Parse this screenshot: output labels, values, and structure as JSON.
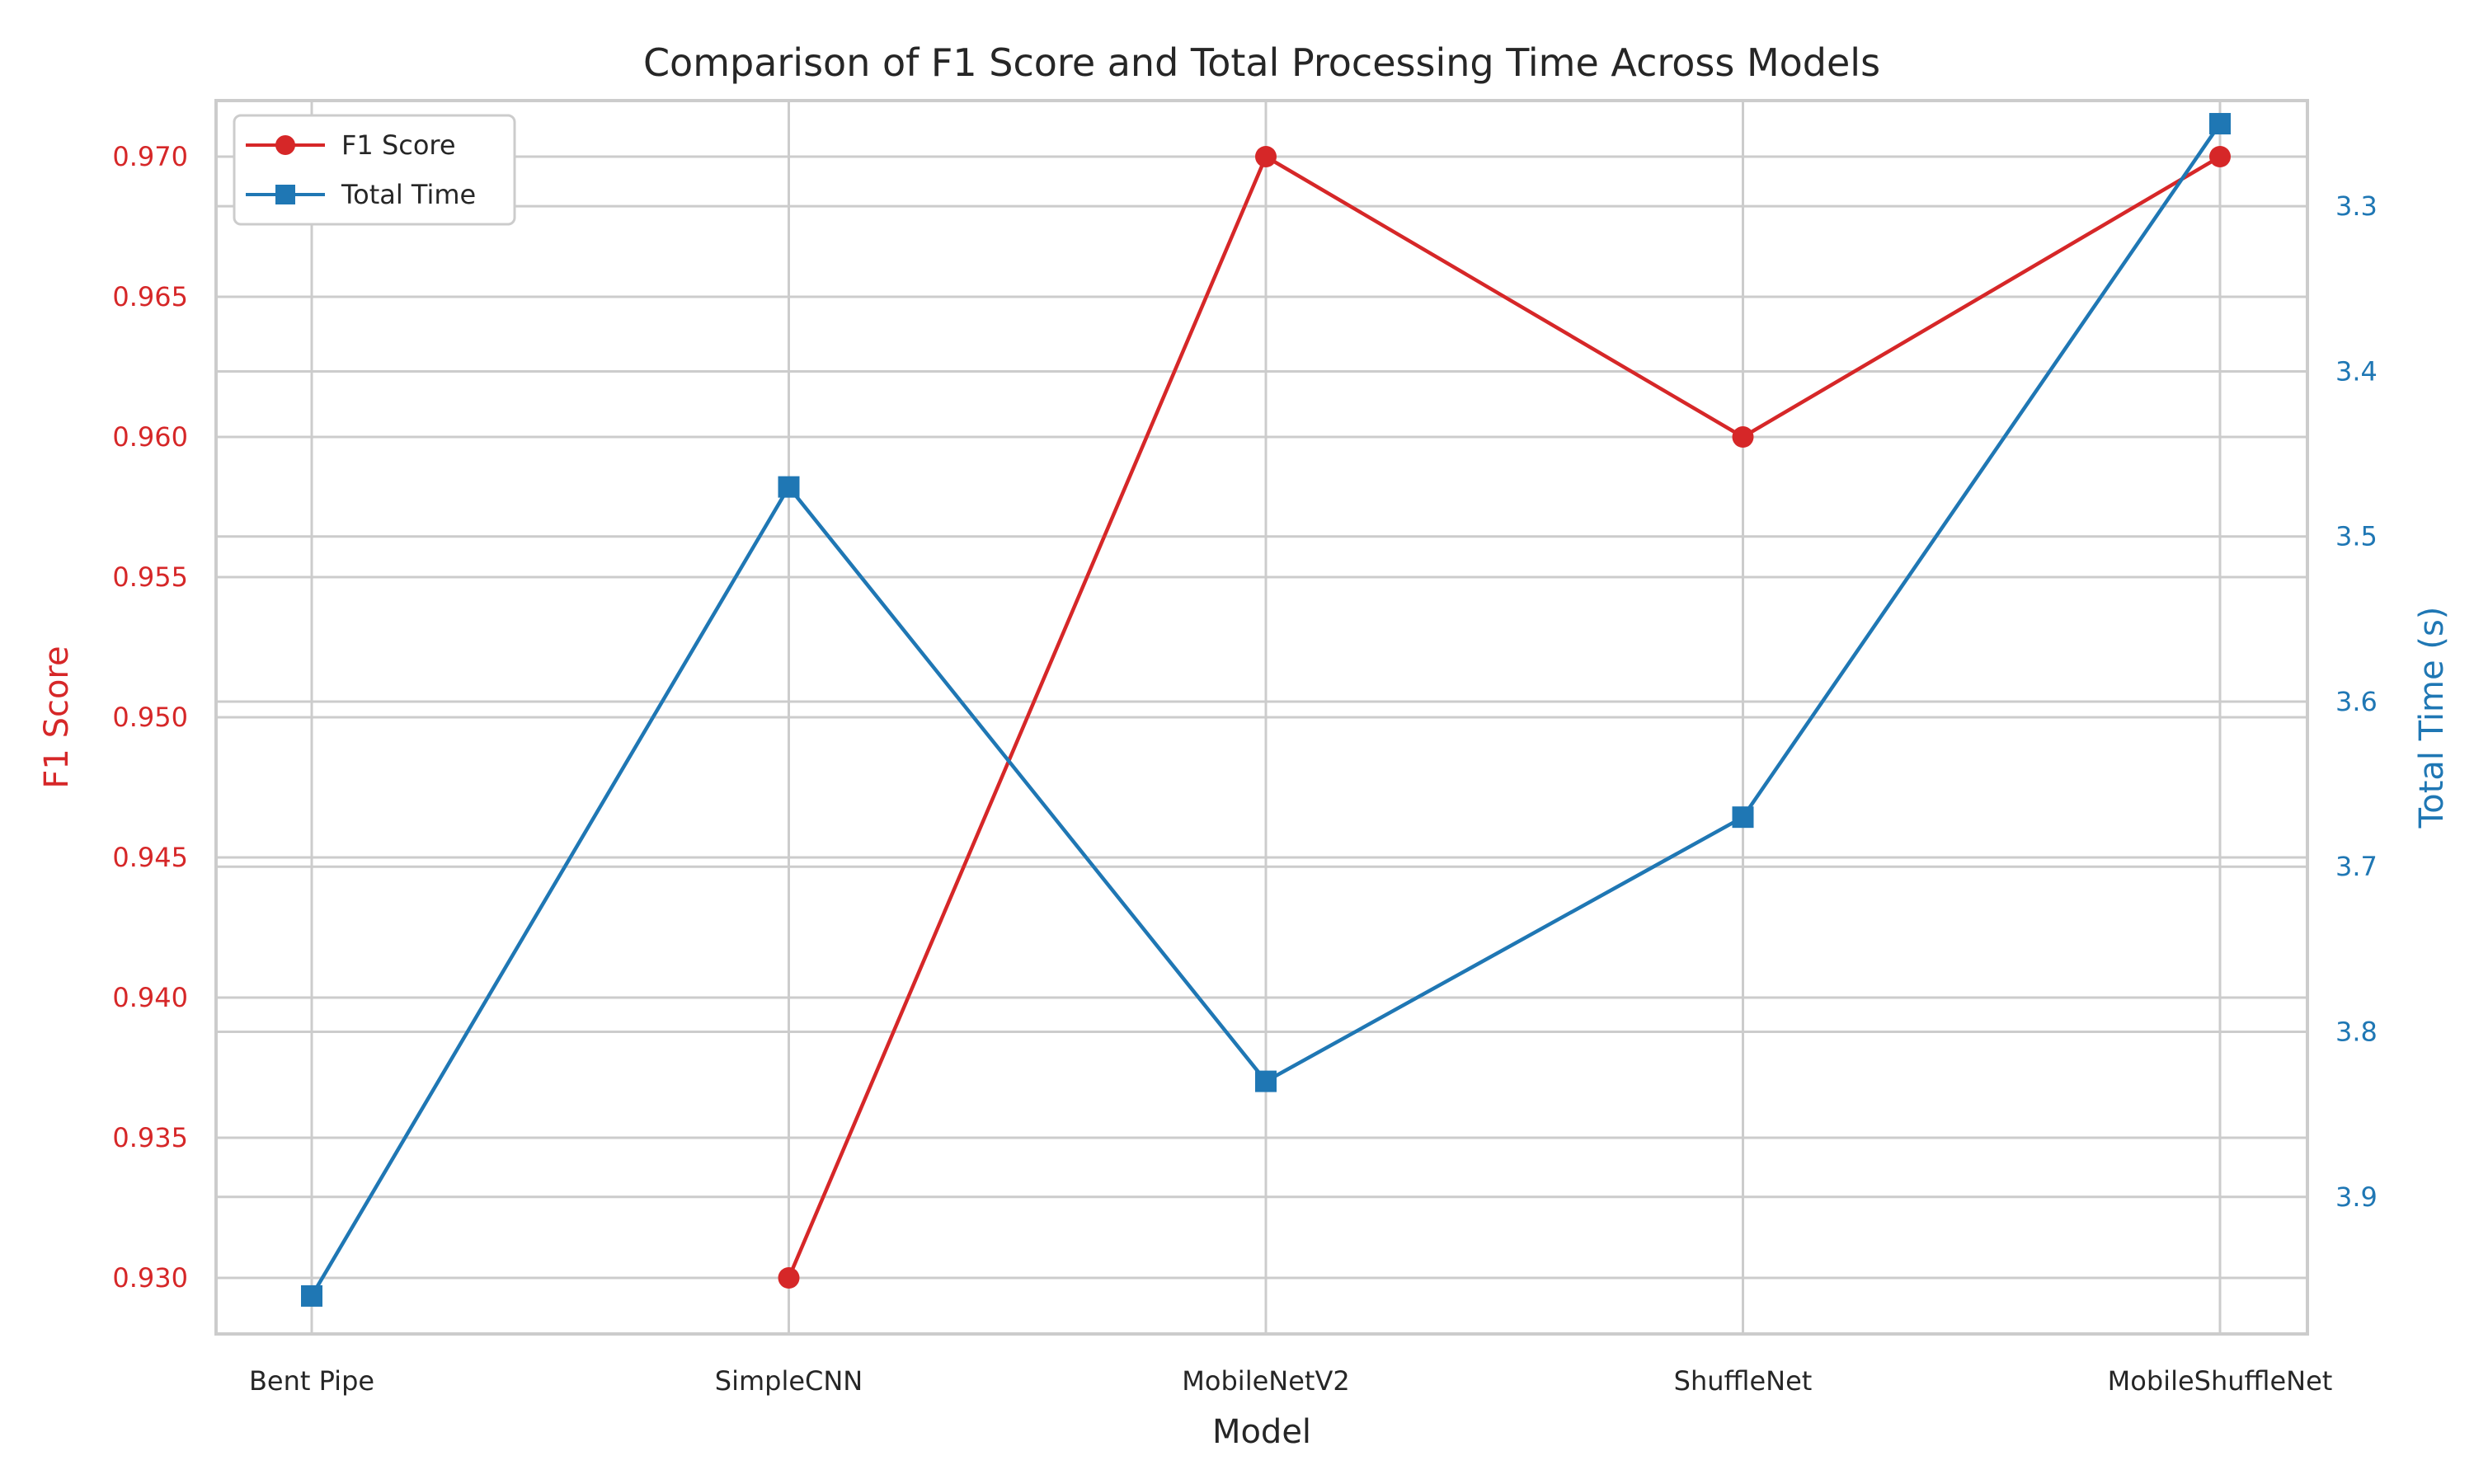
{
  "chart_data": {
    "type": "line",
    "title": "Comparison of F1 Score and Total Processing Time Across Models",
    "xlabel": "Model",
    "categories": [
      "Bent Pipe",
      "SimpleCNN",
      "MobileNetV2",
      "ShuffleNet",
      "MobileShuffleNet"
    ],
    "left_axis": {
      "label": "F1 Score",
      "color": "#d62728",
      "ylim": [
        0.928,
        0.972
      ],
      "ticks": [
        "0.930",
        "0.935",
        "0.940",
        "0.945",
        "0.950",
        "0.955",
        "0.960",
        "0.965",
        "0.970"
      ]
    },
    "right_axis": {
      "label": "Total Time (s)",
      "color": "#1f77b4",
      "inverted": true,
      "ylim": [
        3.983,
        3.236
      ],
      "ticks": [
        "3.3",
        "3.4",
        "3.5",
        "3.6",
        "3.7",
        "3.8",
        "3.9"
      ]
    },
    "series": [
      {
        "name": "F1 Score",
        "axis": "left",
        "color": "#d62728",
        "marker": "circle",
        "values": [
          null,
          0.93,
          0.97,
          0.96,
          0.97
        ]
      },
      {
        "name": "Total Time",
        "axis": "right",
        "color": "#1f77b4",
        "marker": "square",
        "values": [
          3.96,
          3.47,
          3.83,
          3.67,
          3.25
        ]
      }
    ],
    "legend": {
      "position": "top-left",
      "entries": [
        "F1 Score",
        "Total Time"
      ]
    },
    "grid": true
  }
}
